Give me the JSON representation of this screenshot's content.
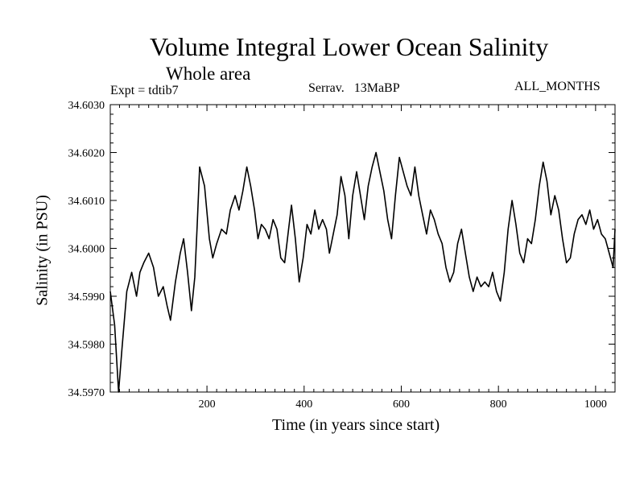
{
  "chart_data": {
    "type": "line",
    "title": "Volume Integral Lower Ocean Salinity",
    "subtitle": "Whole area",
    "annotations": {
      "left": "Expt = tdtib7",
      "center": "Serrav.   13MaBP",
      "right": "ALL_MONTHS"
    },
    "xlabel": "Time (in years since start)",
    "ylabel": "Salinity (in PSU)",
    "xlim": [
      1,
      1040
    ],
    "ylim": [
      34.597,
      34.603
    ],
    "xticks": [
      200,
      400,
      600,
      800,
      1000
    ],
    "xtick_labels": [
      "200",
      "400",
      "600",
      "800",
      "1000"
    ],
    "yticks": [
      34.597,
      34.598,
      34.599,
      34.6,
      34.601,
      34.602,
      34.603
    ],
    "ytick_labels": [
      "34.5970",
      "34.5980",
      "34.5990",
      "34.6000",
      "34.6010",
      "34.6020",
      "34.6030"
    ],
    "grid": false,
    "series": [
      {
        "name": "Volume integral lower ocean salinity",
        "x": [
          1,
          10,
          18,
          25,
          35,
          45,
          55,
          62,
          70,
          80,
          90,
          100,
          110,
          118,
          125,
          135,
          145,
          152,
          160,
          168,
          175,
          180,
          185,
          195,
          205,
          212,
          220,
          230,
          240,
          248,
          258,
          266,
          274,
          282,
          290,
          298,
          305,
          312,
          320,
          328,
          336,
          344,
          352,
          360,
          368,
          374,
          382,
          390,
          398,
          406,
          414,
          422,
          430,
          438,
          446,
          452,
          460,
          468,
          476,
          484,
          492,
          500,
          508,
          516,
          524,
          532,
          540,
          548,
          556,
          564,
          572,
          580,
          588,
          596,
          604,
          612,
          620,
          628,
          636,
          644,
          652,
          660,
          668,
          676,
          684,
          692,
          700,
          708,
          716,
          724,
          732,
          740,
          748,
          756,
          764,
          772,
          780,
          788,
          796,
          804,
          812,
          820,
          828,
          836,
          844,
          852,
          860,
          868,
          876,
          884,
          892,
          900,
          908,
          916,
          924,
          932,
          940,
          948,
          956,
          964,
          972,
          980,
          988,
          996,
          1004,
          1012,
          1020,
          1028,
          1036,
          1040
        ],
        "y": [
          34.5991,
          34.5984,
          34.597,
          34.5979,
          34.5991,
          34.5995,
          34.599,
          34.5995,
          34.5997,
          34.5999,
          34.5996,
          34.599,
          34.5992,
          34.5988,
          34.5985,
          34.5993,
          34.5999,
          34.6002,
          34.5995,
          34.5987,
          34.5994,
          34.6005,
          34.6017,
          34.6013,
          34.6002,
          34.5998,
          34.6001,
          34.6004,
          34.6003,
          34.6008,
          34.6011,
          34.6008,
          34.6012,
          34.6017,
          34.6013,
          34.6008,
          34.6002,
          34.6005,
          34.6004,
          34.6002,
          34.6006,
          34.6004,
          34.5998,
          34.5997,
          34.6004,
          34.6009,
          34.6002,
          34.5993,
          34.5998,
          34.6005,
          34.6003,
          34.6008,
          34.6004,
          34.6006,
          34.6004,
          34.5999,
          34.6003,
          34.6007,
          34.6015,
          34.6011,
          34.6002,
          34.6011,
          34.6016,
          34.6011,
          34.6006,
          34.6013,
          34.6017,
          34.602,
          34.6016,
          34.6012,
          34.6006,
          34.6002,
          34.6011,
          34.6019,
          34.6016,
          34.6013,
          34.6011,
          34.6017,
          34.6011,
          34.6007,
          34.6003,
          34.6008,
          34.6006,
          34.6003,
          34.6001,
          34.5996,
          34.5993,
          34.5995,
          34.6001,
          34.6004,
          34.5999,
          34.5994,
          34.5991,
          34.5994,
          34.5992,
          34.5993,
          34.5992,
          34.5995,
          34.5991,
          34.5989,
          34.5995,
          34.6004,
          34.601,
          34.6005,
          34.5999,
          34.5997,
          34.6002,
          34.6001,
          34.6006,
          34.6013,
          34.6018,
          34.6014,
          34.6007,
          34.6011,
          34.6008,
          34.6002,
          34.5997,
          34.5998,
          34.6003,
          34.6006,
          34.6007,
          34.6005,
          34.6008,
          34.6004,
          34.6006,
          34.6003,
          34.6002,
          34.5999,
          34.5996,
          34.6004
        ]
      }
    ]
  }
}
